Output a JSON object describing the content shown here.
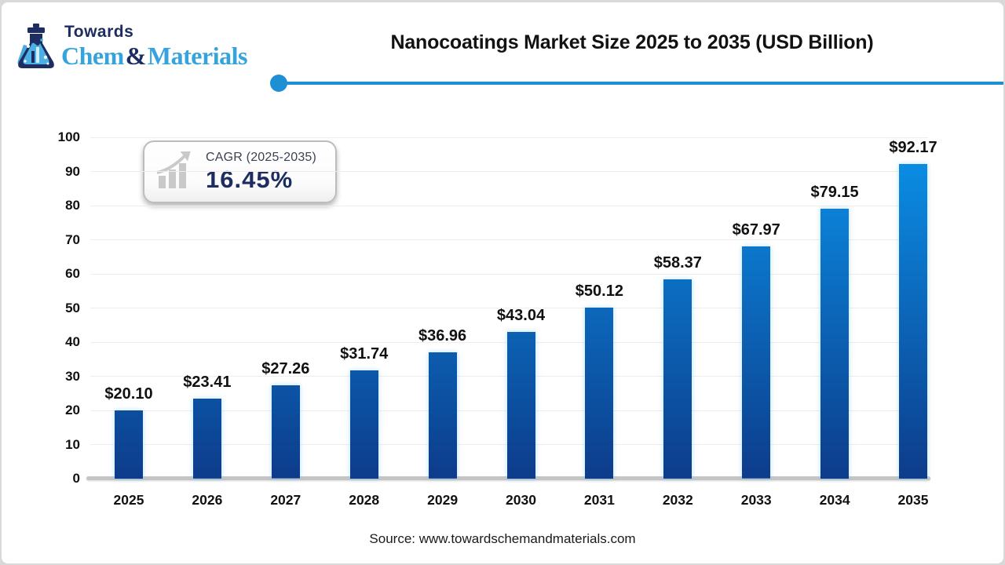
{
  "brand": {
    "towards": "Towards",
    "chem": "Chem",
    "ampersand": "&",
    "materials": "Materials",
    "colors": {
      "navy": "#1e2d61",
      "light_blue": "#35a3dc"
    }
  },
  "header": {
    "title": "Nanocoatings Market Size 2025 to 2035 (USD Billion)",
    "rule_color": "#1e8fd4"
  },
  "cagr": {
    "label": "CAGR (2025-2035)",
    "value": "16.45%",
    "icon": "growth-chart-icon"
  },
  "chart_data": {
    "type": "bar",
    "title": "Nanocoatings Market Size 2025 to 2035 (USD Billion)",
    "categories": [
      "2025",
      "2026",
      "2027",
      "2028",
      "2029",
      "2030",
      "2031",
      "2032",
      "2033",
      "2034",
      "2035"
    ],
    "values": [
      20.1,
      23.41,
      27.26,
      31.74,
      36.96,
      43.04,
      50.12,
      58.37,
      67.97,
      79.15,
      92.17
    ],
    "value_labels": [
      "$20.10",
      "$23.41",
      "$27.26",
      "$31.74",
      "$36.96",
      "$43.04",
      "$50.12",
      "$58.37",
      "$67.97",
      "$79.15",
      "$92.17"
    ],
    "xlabel": "",
    "ylabel": "",
    "ylim": [
      0,
      100
    ],
    "yticks": [
      0,
      10,
      20,
      30,
      40,
      50,
      60,
      70,
      80,
      90,
      100
    ],
    "grid": true,
    "legend": "none",
    "bar_color_top": "#0a93ea",
    "bar_color_bottom": "#0d3c8b"
  },
  "footer": {
    "source": "Source: www.towardschemandmaterials.com"
  }
}
